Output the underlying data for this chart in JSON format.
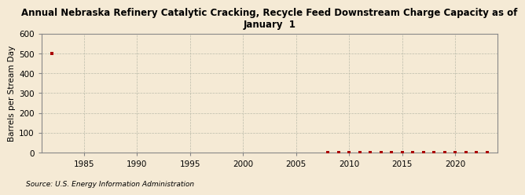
{
  "title": "Annual Nebraska Refinery Catalytic Cracking, Recycle Feed Downstream Charge Capacity as of\nJanuary  1",
  "ylabel": "Barrels per Stream Day",
  "source": "Source: U.S. Energy Information Administration",
  "background_color": "#f5ead5",
  "plot_bg_color": "#f5ead5",
  "xlim": [
    1981,
    2024
  ],
  "ylim": [
    0,
    600
  ],
  "yticks": [
    0,
    100,
    200,
    300,
    400,
    500,
    600
  ],
  "xticks": [
    1985,
    1990,
    1995,
    2000,
    2005,
    2010,
    2015,
    2020
  ],
  "grid_color": "#bbbbaa",
  "marker_color": "#aa0000",
  "years": [
    1982,
    2008,
    2009,
    2010,
    2011,
    2012,
    2013,
    2014,
    2015,
    2016,
    2017,
    2018,
    2019,
    2020,
    2021,
    2022,
    2023
  ],
  "values": [
    500,
    0,
    0,
    0,
    0,
    0,
    0,
    0,
    0,
    0,
    0,
    0,
    0,
    0,
    0,
    0,
    0
  ],
  "title_fontsize": 8.5,
  "ylabel_fontsize": 7.5,
  "tick_fontsize": 7.5,
  "source_fontsize": 6.5
}
